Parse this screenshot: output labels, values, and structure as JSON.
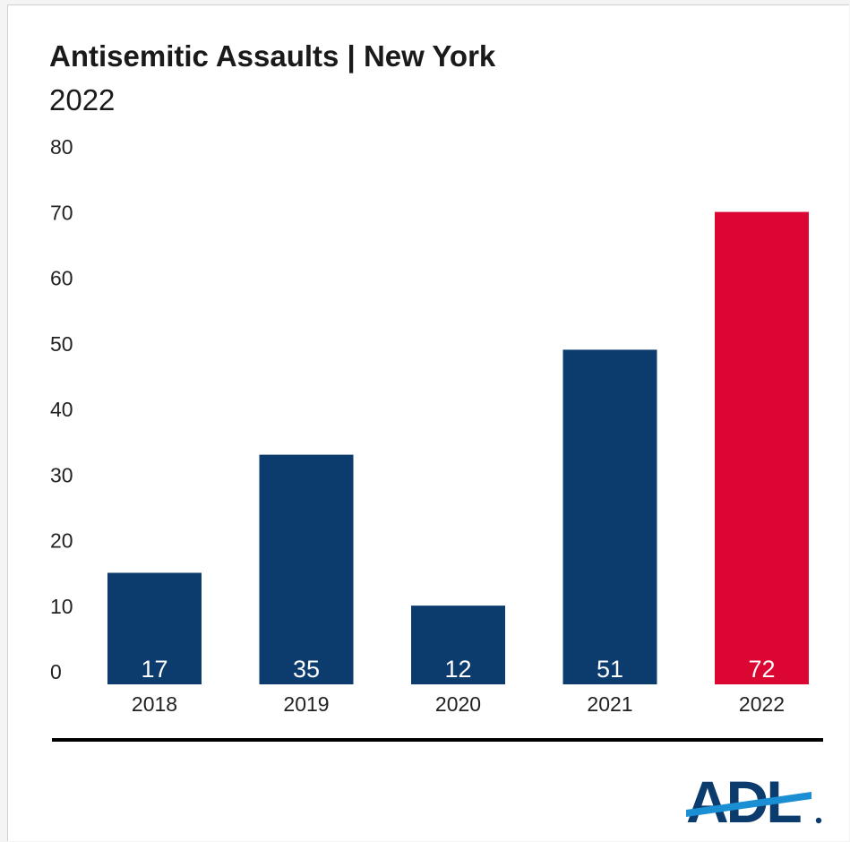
{
  "chart_data": {
    "type": "bar",
    "title": "Antisemitic Assaults | New York",
    "subtitle": "2022",
    "xlabel": "",
    "ylabel": "",
    "categories": [
      "2018",
      "2019",
      "2020",
      "2021",
      "2022"
    ],
    "values": [
      17,
      35,
      12,
      51,
      72
    ],
    "value_labels": [
      "17",
      "35",
      "12",
      "51",
      "72"
    ],
    "y_ticks": [
      "0",
      "10",
      "20",
      "30",
      "40",
      "50",
      "60",
      "70",
      "80"
    ],
    "ylim": [
      0,
      80
    ],
    "grid": false,
    "legend": "none",
    "colors": {
      "default_bar": "#0c3b6e",
      "highlight_bar": "#dc0632",
      "highlight_category": "2022",
      "value_label": "#ffffff",
      "axis_text": "#222222"
    }
  },
  "footer": {
    "logo_text": "ADL",
    "logo_color": "#0c3b6e",
    "logo_accent_color": "#1a8fd3"
  }
}
